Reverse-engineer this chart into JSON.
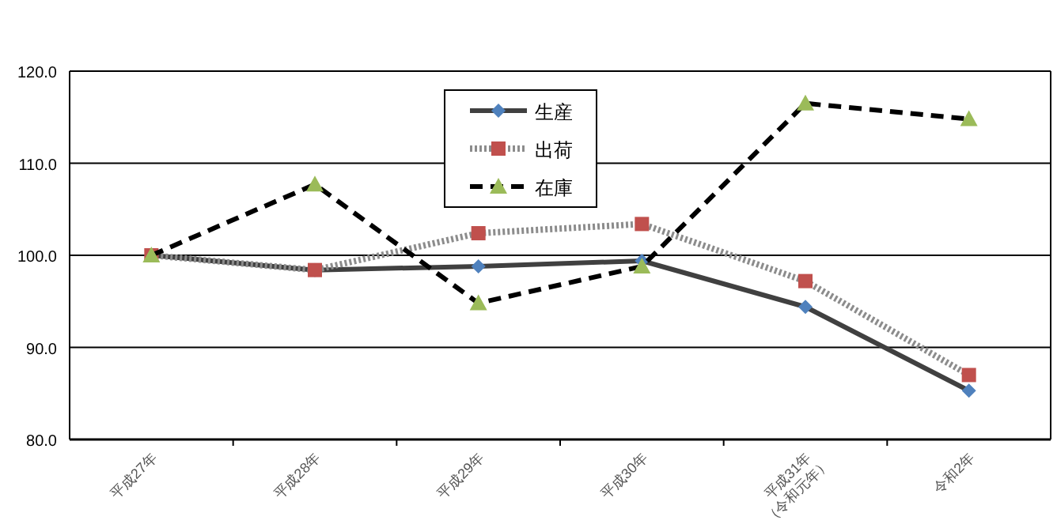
{
  "chart_data": {
    "type": "line",
    "categories": [
      "平成27年",
      "平成28年",
      "平成29年",
      "平成30年",
      "平成31年\n（令和元年）",
      "令和2年"
    ],
    "ylim": [
      80,
      120
    ],
    "yticks": [
      {
        "value": 80,
        "label": "80.0"
      },
      {
        "value": 90,
        "label": "90.0"
      },
      {
        "value": 100,
        "label": "100.0"
      },
      {
        "value": 110,
        "label": "110.0"
      },
      {
        "value": 120,
        "label": "120.0"
      }
    ],
    "grid": "y",
    "legend": "top",
    "series": [
      {
        "name": "生産",
        "color": "#404040",
        "colors": [
          "#4f81bd",
          "#4f81bd",
          "#4f81bd",
          "#4f81bd",
          "#4f81bd",
          "#4f81bd"
        ],
        "marker": "diamond",
        "line_style": "solid",
        "values": [
          100.0,
          98.4,
          98.8,
          99.4,
          94.4,
          85.3
        ]
      },
      {
        "name": "出荷",
        "color": "#8c8c8c",
        "colors": [
          "#c0504d",
          "#c0504d",
          "#c0504d",
          "#c0504d",
          "#c0504d",
          "#c0504d"
        ],
        "marker": "square",
        "line_style": "dotted",
        "values": [
          100.0,
          98.4,
          102.4,
          103.4,
          97.2,
          87.0
        ]
      },
      {
        "name": "在庫",
        "color": "#000000",
        "colors": [
          "#9bbb59",
          "#9bbb59",
          "#9bbb59",
          "#9bbb59",
          "#9bbb59",
          "#9bbb59"
        ],
        "marker": "triangle",
        "line_style": "dashed",
        "values": [
          100.0,
          107.7,
          94.8,
          98.8,
          116.5,
          114.8
        ]
      }
    ]
  }
}
